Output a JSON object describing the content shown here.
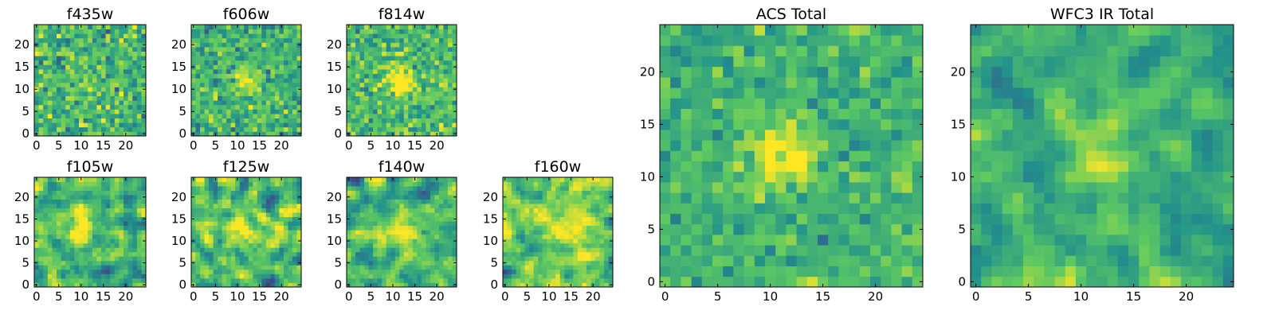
{
  "figure": {
    "colormap": "viridis",
    "colormap_stops": [
      "#440154",
      "#3b528b",
      "#21918c",
      "#5ec962",
      "#fde725"
    ]
  },
  "chart_data": [
    {
      "type": "heatmap",
      "title": "f435w",
      "grid": [
        25,
        25
      ],
      "xlim": [
        0,
        24
      ],
      "ylim": [
        0,
        24
      ],
      "xticks": [
        0,
        5,
        10,
        15,
        20
      ],
      "yticks": [
        0,
        5,
        10,
        15,
        20
      ],
      "peak": [
        11,
        12
      ],
      "peak_strength": 0.15,
      "noise": 0.5,
      "smooth": 0,
      "seed": 11
    },
    {
      "type": "heatmap",
      "title": "f606w",
      "grid": [
        25,
        25
      ],
      "xlim": [
        0,
        24
      ],
      "ylim": [
        0,
        24
      ],
      "xticks": [
        0,
        5,
        10,
        15,
        20
      ],
      "yticks": [
        0,
        5,
        10,
        15,
        20
      ],
      "peak": [
        12,
        12
      ],
      "peak_strength": 0.3,
      "noise": 0.45,
      "smooth": 0,
      "seed": 23
    },
    {
      "type": "heatmap",
      "title": "f814w",
      "grid": [
        25,
        25
      ],
      "xlim": [
        0,
        24
      ],
      "ylim": [
        0,
        24
      ],
      "xticks": [
        0,
        5,
        10,
        15,
        20
      ],
      "yticks": [
        0,
        5,
        10,
        15,
        20
      ],
      "peak": [
        12,
        12
      ],
      "peak_strength": 0.38,
      "noise": 0.42,
      "smooth": 0,
      "seed": 37
    },
    {
      "type": "heatmap",
      "title": "f105w",
      "grid": [
        25,
        25
      ],
      "xlim": [
        0,
        24
      ],
      "ylim": [
        0,
        24
      ],
      "xticks": [
        0,
        5,
        10,
        15,
        20
      ],
      "yticks": [
        0,
        5,
        10,
        15,
        20
      ],
      "peak": [
        11,
        13
      ],
      "peak_strength": 0.4,
      "noise": 0.5,
      "smooth": 1,
      "seed": 41
    },
    {
      "type": "heatmap",
      "title": "f125w",
      "grid": [
        25,
        25
      ],
      "xlim": [
        0,
        24
      ],
      "ylim": [
        0,
        24
      ],
      "xticks": [
        0,
        5,
        10,
        15,
        20
      ],
      "yticks": [
        0,
        5,
        10,
        15,
        20
      ],
      "peak": [
        12,
        13
      ],
      "peak_strength": 0.3,
      "noise": 0.55,
      "smooth": 1,
      "seed": 53
    },
    {
      "type": "heatmap",
      "title": "f140w",
      "grid": [
        25,
        25
      ],
      "xlim": [
        0,
        24
      ],
      "ylim": [
        0,
        24
      ],
      "xticks": [
        0,
        5,
        10,
        15,
        20
      ],
      "yticks": [
        0,
        5,
        10,
        15,
        20
      ],
      "peak": [
        12,
        12
      ],
      "peak_strength": 0.35,
      "noise": 0.55,
      "smooth": 1,
      "seed": 67
    },
    {
      "type": "heatmap",
      "title": "f160w",
      "grid": [
        25,
        25
      ],
      "xlim": [
        0,
        24
      ],
      "ylim": [
        0,
        24
      ],
      "xticks": [
        0,
        5,
        10,
        15,
        20
      ],
      "yticks": [
        0,
        5,
        10,
        15,
        20
      ],
      "peak": [
        13,
        13
      ],
      "peak_strength": 0.38,
      "noise": 0.55,
      "smooth": 1,
      "seed": 79
    },
    {
      "type": "heatmap",
      "title": "ACS Total",
      "grid": [
        25,
        25
      ],
      "xlim": [
        0,
        24
      ],
      "ylim": [
        0,
        24
      ],
      "xticks": [
        0,
        5,
        10,
        15,
        20
      ],
      "yticks": [
        0,
        5,
        10,
        15,
        20
      ],
      "peak": [
        11,
        12
      ],
      "peak_strength": 0.4,
      "noise": 0.36,
      "smooth": 0,
      "seed": 97
    },
    {
      "type": "heatmap",
      "title": "WFC3 IR Total",
      "grid": [
        25,
        25
      ],
      "xlim": [
        0,
        24
      ],
      "ylim": [
        0,
        24
      ],
      "xticks": [
        0,
        5,
        10,
        15,
        20
      ],
      "yticks": [
        0,
        5,
        10,
        15,
        20
      ],
      "peak": [
        12,
        13
      ],
      "peak_strength": 0.4,
      "noise": 0.36,
      "smooth": 1,
      "seed": 113
    }
  ]
}
